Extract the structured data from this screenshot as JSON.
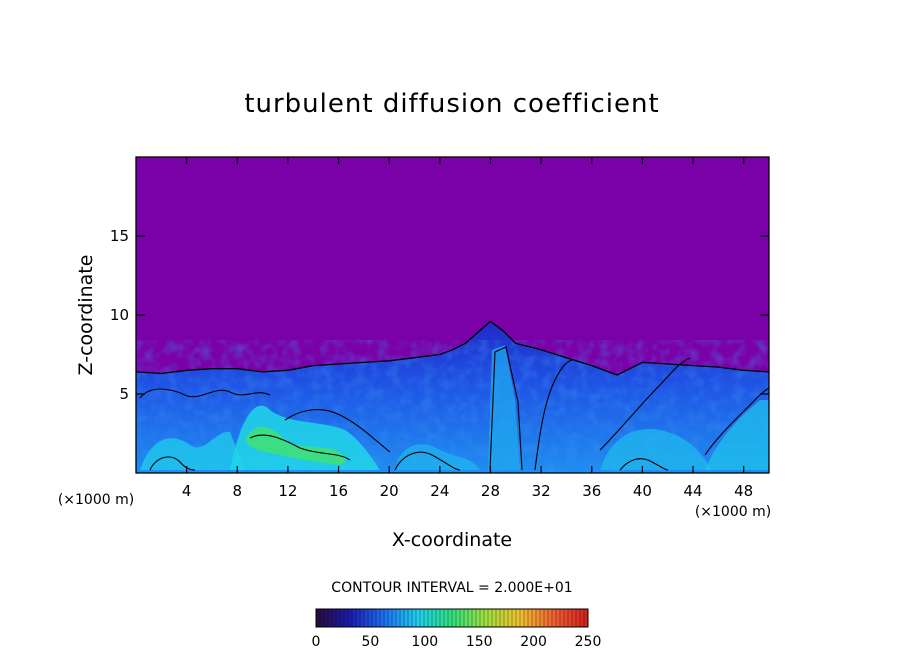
{
  "chart_data": {
    "type": "heatmap",
    "title": "turbulent diffusion coefficient",
    "xlabel": "X-coordinate",
    "ylabel": "Z-coordinate",
    "x_unit": "(×1000 m)",
    "z_unit": "(×1000 m)",
    "xlim": [
      0,
      50
    ],
    "ylim": [
      0,
      20
    ],
    "x_ticks": [
      4,
      8,
      12,
      16,
      20,
      24,
      28,
      32,
      36,
      40,
      44,
      48
    ],
    "y_ticks": [
      5,
      10,
      15
    ],
    "contour_interval_label": "CONTOUR INTERVAL = 2.000E+01",
    "colorbar": {
      "range": [
        0,
        250
      ],
      "ticks": [
        0,
        50,
        100,
        150,
        200,
        250
      ],
      "colors": [
        "#2a0a3a",
        "#1c1cb0",
        "#1e6ff0",
        "#20d0f0",
        "#30e080",
        "#a0e040",
        "#f0c030",
        "#f06030",
        "#d02020"
      ]
    },
    "background_color": "#7a00a8",
    "turbulent_layer_top": {
      "x": [
        0,
        2,
        4,
        6,
        8,
        10,
        12,
        14,
        16,
        18,
        20,
        22,
        24,
        25,
        26,
        27,
        28,
        29,
        30,
        32,
        34,
        36,
        38,
        40,
        42,
        44,
        46,
        48,
        50
      ],
      "z": [
        6.4,
        6.3,
        6.5,
        6.6,
        6.6,
        6.4,
        6.5,
        6.8,
        6.9,
        7.0,
        7.1,
        7.3,
        7.5,
        7.8,
        8.2,
        8.9,
        9.6,
        9.0,
        8.2,
        7.8,
        7.3,
        6.8,
        6.2,
        7.0,
        6.9,
        6.8,
        6.7,
        6.5,
        6.4
      ]
    },
    "high_value_region": {
      "x": [
        8,
        16
      ],
      "z": [
        1,
        4
      ],
      "peak": 110
    }
  }
}
